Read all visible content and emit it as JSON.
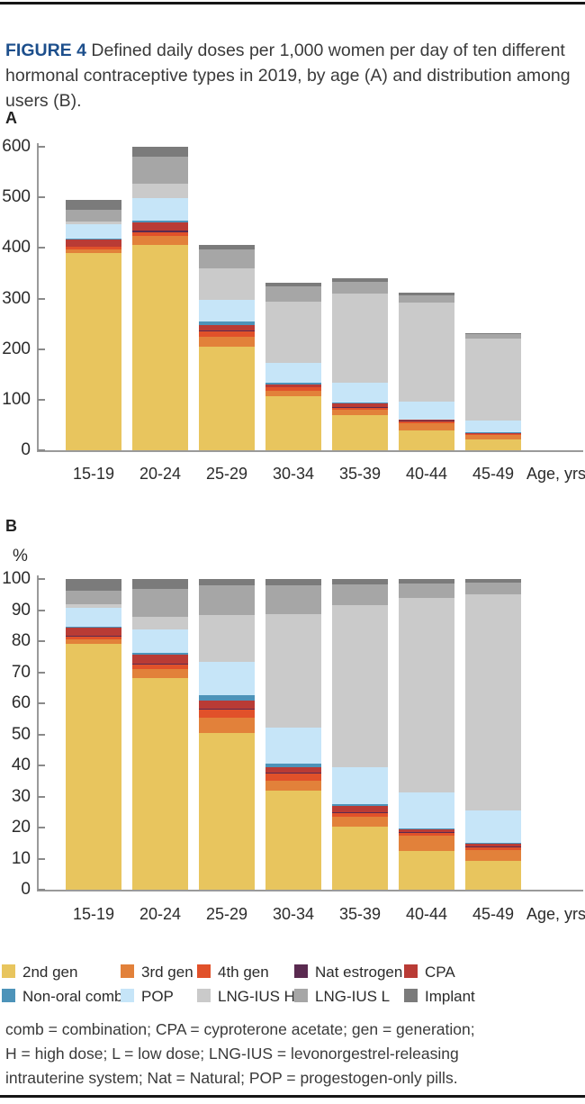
{
  "header": {
    "figure_label": "FIGURE 4",
    "title": "Defined daily doses per 1,000 women per day of ten different hormonal contraceptive types in 2019, by age (A) and distribution among users (B)."
  },
  "colors": {
    "figure_label_accent": "#1d4f8c",
    "axis": "#9a9a9a",
    "text": "#2e2e2e"
  },
  "chart_data": [
    {
      "id": "A",
      "panel_label": "A",
      "type": "bar",
      "stacked": true,
      "grid": false,
      "categories": [
        "15-19",
        "20-24",
        "25-29",
        "30-34",
        "35-39",
        "40-44",
        "45-49"
      ],
      "x_axis_label": "Age, yrs",
      "y_axis_label": "",
      "ylim": [
        0,
        600
      ],
      "yticks": [
        0,
        100,
        200,
        300,
        400,
        500,
        600
      ],
      "series": [
        {
          "name": "2nd gen",
          "color": "#e8c55e",
          "values": [
            390,
            406,
            205,
            106,
            69,
            39,
            22
          ]
        },
        {
          "name": "3rd gen",
          "color": "#e2813a",
          "values": [
            7,
            17,
            20,
            11,
            11,
            15,
            8
          ]
        },
        {
          "name": "4th gen",
          "color": "#e1512a",
          "values": [
            5,
            8,
            10,
            7,
            4,
            3,
            2
          ]
        },
        {
          "name": "Nat estrogen",
          "color": "#5a2a50",
          "values": [
            1,
            3,
            2,
            1,
            1,
            1,
            0.5
          ]
        },
        {
          "name": "CPA",
          "color": "#b93b35",
          "values": [
            14,
            17,
            11,
            5,
            7,
            2,
            2
          ]
        },
        {
          "name": "Non-oral comb",
          "color": "#4d93b9",
          "values": [
            1,
            3,
            7,
            4,
            2,
            1,
            0.5
          ]
        },
        {
          "name": "POP",
          "color": "#c6e5f8",
          "values": [
            29,
            45,
            43,
            38,
            40,
            36,
            24
          ]
        },
        {
          "name": "LNG-IUS H",
          "color": "#cacaca",
          "values": [
            5,
            28,
            62,
            122,
            176,
            195,
            162
          ]
        },
        {
          "name": "LNG-IUS L",
          "color": "#a6a6a6",
          "values": [
            24,
            53,
            38,
            31,
            23,
            15,
            9
          ]
        },
        {
          "name": "Implant",
          "color": "#7b7b7b",
          "values": [
            19,
            20,
            8,
            7,
            7,
            4,
            2
          ]
        }
      ],
      "bar_totals": [
        495,
        600,
        406,
        332,
        340,
        311,
        232
      ]
    },
    {
      "id": "B",
      "panel_label": "B",
      "type": "bar",
      "stacked": true,
      "grid": false,
      "categories": [
        "15-19",
        "20-24",
        "25-29",
        "30-34",
        "35-39",
        "40-44",
        "45-49"
      ],
      "x_axis_label": "Age, yrs",
      "y_axis_label": "%",
      "ylim": [
        0,
        100
      ],
      "yticks": [
        0,
        10,
        20,
        30,
        40,
        50,
        60,
        70,
        80,
        90,
        100
      ],
      "series": [
        {
          "name": "2nd gen",
          "color": "#e8c55e",
          "values": [
            79,
            68,
            50.5,
            32,
            20.3,
            12.5,
            9.3
          ]
        },
        {
          "name": "3rd gen",
          "color": "#e2813a",
          "values": [
            1.5,
            2.9,
            5,
            3.2,
            3.2,
            4.9,
            3.5
          ]
        },
        {
          "name": "4th gen",
          "color": "#e1512a",
          "values": [
            1,
            1.5,
            2.5,
            2.2,
            1.2,
            1.0,
            0.8
          ]
        },
        {
          "name": "Nat estrogen",
          "color": "#5a2a50",
          "values": [
            0.3,
            0.5,
            0.4,
            0.4,
            0.3,
            0.3,
            0.3
          ]
        },
        {
          "name": "CPA",
          "color": "#b93b35",
          "values": [
            2.7,
            2.7,
            2.6,
            1.6,
            2,
            0.7,
            0.8
          ]
        },
        {
          "name": "Non-oral comb",
          "color": "#4d93b9",
          "values": [
            0.3,
            0.7,
            1.7,
            1.3,
            0.5,
            0.3,
            0.3
          ]
        },
        {
          "name": "POP",
          "color": "#c6e5f8",
          "values": [
            6,
            7.5,
            10.5,
            11.4,
            11.8,
            11.6,
            10.4
          ]
        },
        {
          "name": "LNG-IUS H",
          "color": "#cacaca",
          "values": [
            1,
            4,
            15.3,
            36.6,
            52.2,
            62.5,
            69.6
          ]
        },
        {
          "name": "LNG-IUS L",
          "color": "#a6a6a6",
          "values": [
            4.5,
            9,
            9.5,
            9.3,
            6.8,
            4.7,
            4
          ]
        },
        {
          "name": "Implant",
          "color": "#7b7b7b",
          "values": [
            3.7,
            3.2,
            2,
            2,
            1.7,
            1.5,
            1
          ]
        }
      ]
    }
  ],
  "legend": {
    "rows": [
      [
        "2nd gen",
        "3rd gen",
        "4th gen",
        "Nat estrogen",
        "CPA"
      ],
      [
        "Non-oral comb",
        "POP",
        "LNG-IUS H",
        "LNG-IUS L",
        "Implant"
      ]
    ]
  },
  "footnote_lines": [
    "comb = combination; CPA = cyproterone acetate; gen = generation;",
    "H = high dose; L = low dose; LNG-IUS = levonorgestrel-releasing",
    "intrauterine system; Nat = Natural; POP = progestogen-only pills."
  ]
}
